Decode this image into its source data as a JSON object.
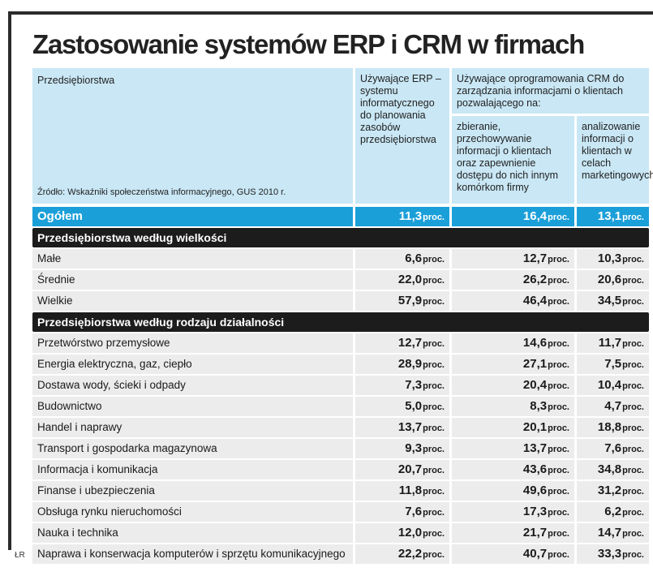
{
  "title": "Zastosowanie systemów ERP i CRM w firmach",
  "author": "ŁR",
  "header": {
    "enterprises": "Przedsiębiorstwa",
    "source": "Źródło: Wskaźniki społeczeństwa informacyjnego, GUS 2010 r.",
    "erp": "Używające ERP – systemu informatycznego do planowania zasobów przedsiębiorstwa",
    "crm": "Używające oprogramowania CRM do zarządzania informacjami o klientach pozwalającego na:",
    "crm_collect": "zbieranie, przechowywanie informacji o klientach oraz zapewnienie dostępu do nich innym komórkom firmy",
    "crm_analyze": "analizowanie informacji o klientach w celach marketingowych"
  },
  "unit": "proc.",
  "total": {
    "label": "Ogółem",
    "values": [
      "11,3",
      "16,4",
      "13,1"
    ]
  },
  "sections": [
    {
      "title": "Przedsiębiorstwa według wielkości",
      "rows": [
        {
          "label": "Małe",
          "values": [
            "6,6",
            "12,7",
            "10,3"
          ]
        },
        {
          "label": "Średnie",
          "values": [
            "22,0",
            "26,2",
            "20,6"
          ]
        },
        {
          "label": "Wielkie",
          "values": [
            "57,9",
            "46,4",
            "34,5"
          ]
        }
      ]
    },
    {
      "title": "Przedsiębiorstwa według rodzaju działalności",
      "rows": [
        {
          "label": "Przetwórstwo przemysłowe",
          "values": [
            "12,7",
            "14,6",
            "11,7"
          ]
        },
        {
          "label": "Energia elektryczna, gaz, ciepło",
          "values": [
            "28,9",
            "27,1",
            "7,5"
          ]
        },
        {
          "label": "Dostawa wody, ścieki i odpady",
          "values": [
            "7,3",
            "20,4",
            "10,4"
          ]
        },
        {
          "label": "Budownictwo",
          "values": [
            "5,0",
            "8,3",
            "4,7"
          ]
        },
        {
          "label": "Handel i naprawy",
          "values": [
            "13,7",
            "20,1",
            "18,8"
          ]
        },
        {
          "label": "Transport i gospodarka magazynowa",
          "values": [
            "9,3",
            "13,7",
            "7,6"
          ]
        },
        {
          "label": "Informacja i komunikacja",
          "values": [
            "20,7",
            "43,6",
            "34,8"
          ]
        },
        {
          "label": "Finanse i ubezpieczenia",
          "values": [
            "11,8",
            "49,6",
            "31,2"
          ]
        },
        {
          "label": "Obsługa rynku nieruchomości",
          "values": [
            "7,6",
            "17,3",
            "6,2"
          ]
        },
        {
          "label": "Nauka i technika",
          "values": [
            "12,0",
            "21,7",
            "14,7"
          ]
        },
        {
          "label": "Naprawa i konserwacja komputerów i sprzętu komunikacyjnego",
          "values": [
            "22,2",
            "40,7",
            "33,3"
          ]
        }
      ]
    }
  ]
}
